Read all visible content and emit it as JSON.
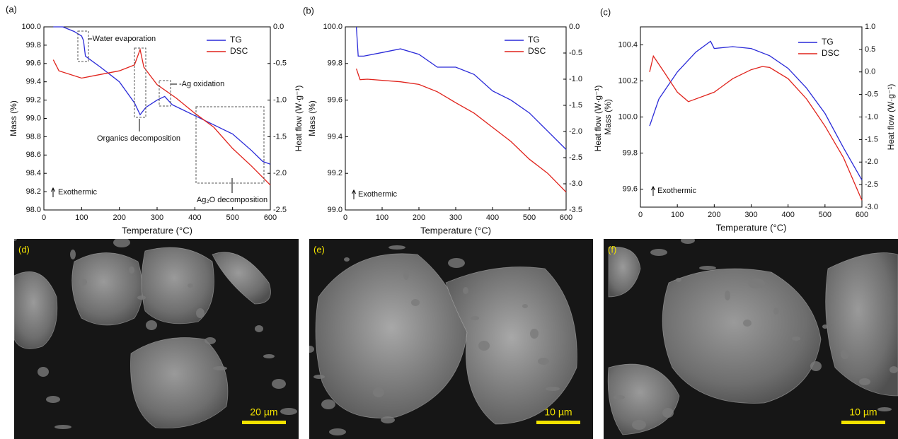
{
  "chart_data": [
    {
      "type": "line",
      "panel": "(a)",
      "xlabel": "Temperature (°C)",
      "ylabel": "Mass (%)",
      "y2label": "Heat flow (W·g⁻¹)",
      "xlim": [
        0,
        600
      ],
      "xticks": [
        0,
        100,
        200,
        300,
        400,
        500,
        600
      ],
      "ylim": [
        98,
        100
      ],
      "yticks": [
        {
          "value": 98,
          "label": "98.0"
        },
        98.2,
        98.4,
        98.6,
        98.8,
        {
          "value": 99,
          "label": "99.0"
        },
        99.2,
        99.4,
        99.6,
        99.8,
        {
          "value": 100,
          "label": "100.0"
        }
      ],
      "y2lim": [
        -2.5,
        0
      ],
      "y2ticks": [
        {
          "value": -2.5,
          "label": "-2.5"
        },
        {
          "value": -2,
          "label": "-2.0"
        },
        -1.5,
        {
          "value": -1,
          "label": "-1.0"
        },
        -0.5,
        {
          "value": 0,
          "label": "0.0"
        }
      ],
      "legend": "upper right",
      "series": [
        {
          "name": "TG",
          "color": "#2a2ad8",
          "axis": "y",
          "x": [
            25,
            50,
            80,
            100,
            105,
            110,
            120,
            150,
            200,
            240,
            255,
            270,
            300,
            320,
            340,
            400,
            450,
            500,
            550,
            580,
            600
          ],
          "values": [
            100.0,
            100.0,
            99.95,
            99.9,
            99.85,
            99.68,
            99.65,
            99.56,
            99.4,
            99.17,
            99.04,
            99.12,
            99.2,
            99.24,
            99.15,
            99.03,
            98.93,
            98.83,
            98.65,
            98.53,
            98.5
          ]
        },
        {
          "name": "DSC",
          "color": "#e0231c",
          "axis": "y2",
          "x": [
            25,
            40,
            100,
            150,
            200,
            240,
            255,
            265,
            300,
            350,
            400,
            450,
            500,
            550,
            600
          ],
          "values": [
            -0.45,
            -0.6,
            -0.7,
            -0.65,
            -0.6,
            -0.52,
            -0.31,
            -0.55,
            -0.79,
            -0.97,
            -1.18,
            -1.37,
            -1.66,
            -1.9,
            -2.16
          ]
        }
      ],
      "annotations": [
        "-Water evaporation",
        "-Ag oxidation",
        "Organics decomposition",
        "Ag₂O decomposition",
        "Exothermic"
      ]
    },
    {
      "type": "line",
      "panel": "(b)",
      "xlabel": "Temperature (°C)",
      "ylabel": "Mass (%)",
      "y2label": "Heat flow (W·g⁻¹)",
      "xlim": [
        0,
        600
      ],
      "xticks": [
        0,
        100,
        200,
        300,
        400,
        500,
        600
      ],
      "ylim": [
        99,
        100
      ],
      "yticks": [
        {
          "value": 99,
          "label": "99.0"
        },
        99.2,
        99.4,
        99.6,
        99.8,
        {
          "value": 100,
          "label": "100.0"
        }
      ],
      "y2lim": [
        -3.5,
        0
      ],
      "y2ticks": [
        -3.5,
        {
          "value": -3,
          "label": "-3.0"
        },
        -2.5,
        {
          "value": -2,
          "label": "-2.0"
        },
        -1.5,
        {
          "value": -1,
          "label": "-1.0"
        },
        -0.5,
        {
          "value": 0,
          "label": "0.0"
        }
      ],
      "legend": "upper right",
      "series": [
        {
          "name": "TG",
          "color": "#2a2ad8",
          "axis": "y",
          "x": [
            30,
            35,
            50,
            100,
            150,
            200,
            250,
            300,
            350,
            400,
            450,
            500,
            550,
            600
          ],
          "values": [
            100.0,
            99.84,
            99.84,
            99.86,
            99.88,
            99.85,
            99.78,
            99.78,
            99.74,
            99.65,
            99.6,
            99.53,
            99.43,
            99.33
          ]
        },
        {
          "name": "DSC",
          "color": "#e0231c",
          "axis": "y2",
          "x": [
            30,
            40,
            60,
            150,
            200,
            250,
            300,
            350,
            400,
            450,
            500,
            550,
            600
          ],
          "values": [
            -0.8,
            -1.01,
            -1.0,
            -1.05,
            -1.1,
            -1.24,
            -1.45,
            -1.65,
            -1.92,
            -2.19,
            -2.53,
            -2.8,
            -3.16
          ]
        }
      ],
      "annotations": [
        "Exothermic"
      ]
    },
    {
      "type": "line",
      "panel": "(c)",
      "xlabel": "Temperature (°C)",
      "ylabel": "Mass (%)",
      "y2label": "Heat flow (W·g⁻¹)",
      "xlim": [
        0,
        600
      ],
      "xticks": [
        0,
        100,
        200,
        300,
        400,
        500,
        600
      ],
      "ylim": [
        99.5,
        100.5
      ],
      "yticks": [
        99.6,
        99.8,
        {
          "value": 100,
          "label": "100.0"
        },
        100.2,
        100.4
      ],
      "y2lim": [
        -3,
        1
      ],
      "y2ticks": [
        {
          "value": -3,
          "label": "-3.0"
        },
        -2.5,
        {
          "value": -2,
          "label": "-2.0"
        },
        -1.5,
        {
          "value": -1,
          "label": "-1.0"
        },
        -0.5,
        {
          "value": 0,
          "label": "0.0"
        },
        0.5,
        {
          "value": 1,
          "label": "1.0"
        }
      ],
      "legend": "upper right",
      "series": [
        {
          "name": "TG",
          "color": "#2a2ad8",
          "axis": "y",
          "x": [
            25,
            50,
            100,
            150,
            190,
            200,
            250,
            300,
            350,
            400,
            450,
            500,
            550,
            600
          ],
          "values": [
            99.95,
            100.1,
            100.25,
            100.36,
            100.42,
            100.38,
            100.39,
            100.38,
            100.34,
            100.27,
            100.16,
            100.02,
            99.83,
            99.65
          ]
        },
        {
          "name": "DSC",
          "color": "#e0231c",
          "axis": "y2",
          "x": [
            25,
            35,
            60,
            100,
            130,
            200,
            250,
            300,
            330,
            350,
            400,
            450,
            500,
            550,
            600
          ],
          "values": [
            0.0,
            0.35,
            0.05,
            -0.45,
            -0.66,
            -0.45,
            -0.15,
            0.05,
            0.12,
            0.1,
            -0.15,
            -0.6,
            -1.2,
            -1.9,
            -2.85
          ]
        }
      ],
      "annotations": [
        "Exothermic"
      ]
    }
  ],
  "images": [
    {
      "label": "(d)",
      "scale_bar": "20 µm"
    },
    {
      "label": "(e)",
      "scale_bar": "10 µm"
    },
    {
      "label": "(f)",
      "scale_bar": "10 µm"
    }
  ]
}
